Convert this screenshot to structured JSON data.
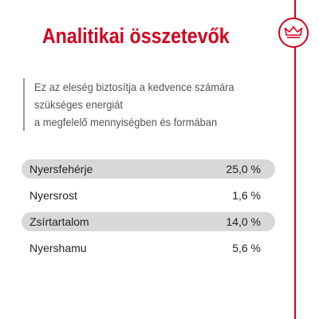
{
  "header": {
    "title": "Analitikai összetevők"
  },
  "description": {
    "lines": [
      "Ez az eleség biztosítja a kedvence számára",
      "szükséges energiát",
      "a megfelelő mennyiségben és formában"
    ]
  },
  "nutrients": [
    {
      "label": "Nyersfehérje",
      "value": "25,0 %"
    },
    {
      "label": "Nyersrost",
      "value": "1,6 %"
    },
    {
      "label": "Zsírtartalom",
      "value": "14,0 %"
    },
    {
      "label": "Nyershamu",
      "value": "5,6 %"
    }
  ],
  "colors": {
    "brand_red": "#d4021e",
    "row_shade": "#d8d8d8",
    "text": "#222222"
  },
  "icons": {
    "logo": "crown-logo-icon"
  }
}
